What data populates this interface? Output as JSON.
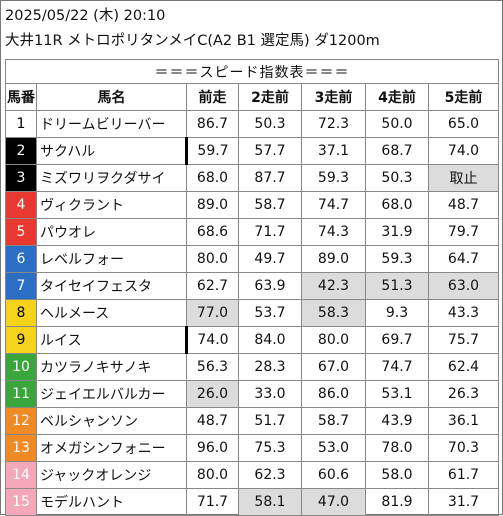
{
  "header": {
    "date_line": "2025/05/22 (木) 20:10",
    "race_line": "大井11R メトロポリタンメイC(A2 B1 選定馬) ダ1200m"
  },
  "banner": "＝＝＝スピード指数表＝＝＝",
  "columns": [
    "馬番",
    "馬名",
    "前走",
    "2走前",
    "3走前",
    "4走前",
    "5走前"
  ],
  "colors": {
    "gate": [
      "#ffffff",
      "#000000",
      "#e8382f",
      "#2b6ec4",
      "#f5d21c",
      "#3aa53a",
      "#f08a24",
      "#f4a7b9"
    ],
    "gate_text": [
      "#000000",
      "#ffffff",
      "#ffffff",
      "#ffffff",
      "#000000",
      "#ffffff",
      "#ffffff",
      "#ffffff"
    ],
    "highlight": "#dcdcdc"
  },
  "rows": [
    {
      "num": "1",
      "gate": 1,
      "name": "ドリームビリーバー",
      "v": [
        "86.7",
        "50.3",
        "72.3",
        "50.0",
        "65.0"
      ],
      "hl": [],
      "mark": false
    },
    {
      "num": "2",
      "gate": 2,
      "name": "サクハル",
      "v": [
        "59.7",
        "57.7",
        "37.1",
        "68.7",
        "74.0"
      ],
      "hl": [],
      "mark": true
    },
    {
      "num": "3",
      "gate": 2,
      "name": "ミズワリヲクダサイ",
      "v": [
        "68.0",
        "87.7",
        "59.3",
        "50.3",
        "取止"
      ],
      "hl": [
        4
      ],
      "mark": false
    },
    {
      "num": "4",
      "gate": 3,
      "name": "ヴィクラント",
      "v": [
        "89.0",
        "58.7",
        "74.7",
        "68.0",
        "48.7"
      ],
      "hl": [],
      "mark": false
    },
    {
      "num": "5",
      "gate": 3,
      "name": "パウオレ",
      "v": [
        "68.6",
        "71.7",
        "74.3",
        "31.9",
        "79.7"
      ],
      "hl": [],
      "mark": false
    },
    {
      "num": "6",
      "gate": 4,
      "name": "レベルフォー",
      "v": [
        "80.0",
        "49.7",
        "89.0",
        "59.3",
        "64.7"
      ],
      "hl": [],
      "mark": false
    },
    {
      "num": "7",
      "gate": 4,
      "name": "タイセイフェスタ",
      "v": [
        "62.7",
        "63.9",
        "42.3",
        "51.3",
        "63.0"
      ],
      "hl": [
        2,
        3,
        4
      ],
      "mark": false
    },
    {
      "num": "8",
      "gate": 5,
      "name": "ヘルメース",
      "v": [
        "77.0",
        "53.7",
        "58.3",
        "9.3",
        "43.3"
      ],
      "hl": [
        0,
        2
      ],
      "mark": false
    },
    {
      "num": "9",
      "gate": 5,
      "name": "ルイス",
      "v": [
        "74.0",
        "84.0",
        "80.0",
        "69.7",
        "75.7"
      ],
      "hl": [],
      "mark": true
    },
    {
      "num": "10",
      "gate": 6,
      "name": "カツラノキサノキ",
      "v": [
        "56.3",
        "28.3",
        "67.0",
        "74.7",
        "62.4"
      ],
      "hl": [],
      "mark": false
    },
    {
      "num": "11",
      "gate": 6,
      "name": "ジェイエルバルカー",
      "v": [
        "26.0",
        "33.0",
        "86.0",
        "53.1",
        "26.3"
      ],
      "hl": [
        0
      ],
      "mark": false
    },
    {
      "num": "12",
      "gate": 7,
      "name": "ベルシャンソン",
      "v": [
        "48.7",
        "51.7",
        "58.7",
        "43.9",
        "36.1"
      ],
      "hl": [],
      "mark": false
    },
    {
      "num": "13",
      "gate": 7,
      "name": "オメガシンフォニー",
      "v": [
        "96.0",
        "75.3",
        "53.0",
        "78.0",
        "70.3"
      ],
      "hl": [],
      "mark": false
    },
    {
      "num": "14",
      "gate": 8,
      "name": "ジャックオレンジ",
      "v": [
        "80.0",
        "62.3",
        "60.6",
        "58.0",
        "61.7"
      ],
      "hl": [],
      "mark": false
    },
    {
      "num": "15",
      "gate": 8,
      "name": "モデルハント",
      "v": [
        "71.7",
        "58.1",
        "47.0",
        "81.9",
        "31.7"
      ],
      "hl": [
        1,
        2
      ],
      "mark": false
    }
  ]
}
